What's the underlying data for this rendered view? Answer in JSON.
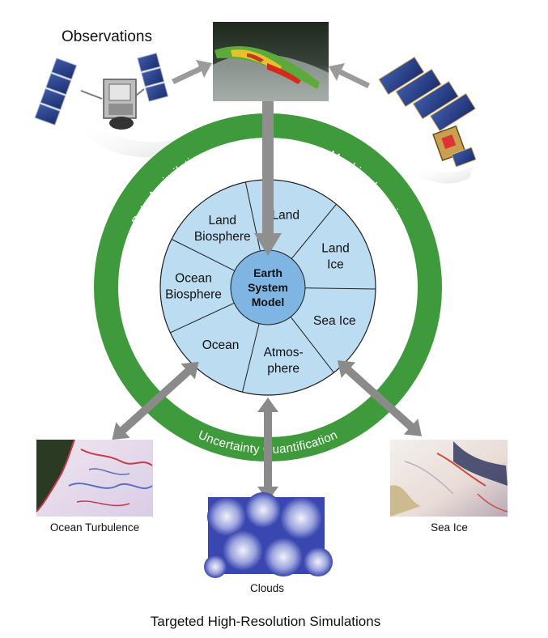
{
  "header": {
    "observations_label": "Observations"
  },
  "ring": {
    "left_label": "Data Assimilation",
    "right_label": "Machine Learning",
    "bottom_label": "Uncertainty Quantification",
    "ring_color": "#3f9a3c"
  },
  "model": {
    "core_lines": [
      "Earth",
      "System",
      "Model"
    ],
    "segments": [
      {
        "id": "land",
        "lines": [
          "Land"
        ]
      },
      {
        "id": "land-ice",
        "lines": [
          "Land",
          "Ice"
        ]
      },
      {
        "id": "sea-ice",
        "lines": [
          "Sea Ice"
        ]
      },
      {
        "id": "atmosphere",
        "lines": [
          "Atmos-",
          "phere"
        ]
      },
      {
        "id": "ocean",
        "lines": [
          "Ocean"
        ]
      },
      {
        "id": "ocean-biosphere",
        "lines": [
          "Ocean",
          "Biosphere"
        ]
      },
      {
        "id": "land-biosphere",
        "lines": [
          "Land",
          "Biosphere"
        ]
      }
    ],
    "disk_color": "#bcdcf2",
    "core_color": "#7fb5e3"
  },
  "simulations": {
    "ocean_turbulence": "Ocean Turbulence",
    "clouds": "Clouds",
    "sea_ice": "Sea Ice"
  },
  "footer": {
    "title": "Targeted High-Resolution Simulations"
  }
}
